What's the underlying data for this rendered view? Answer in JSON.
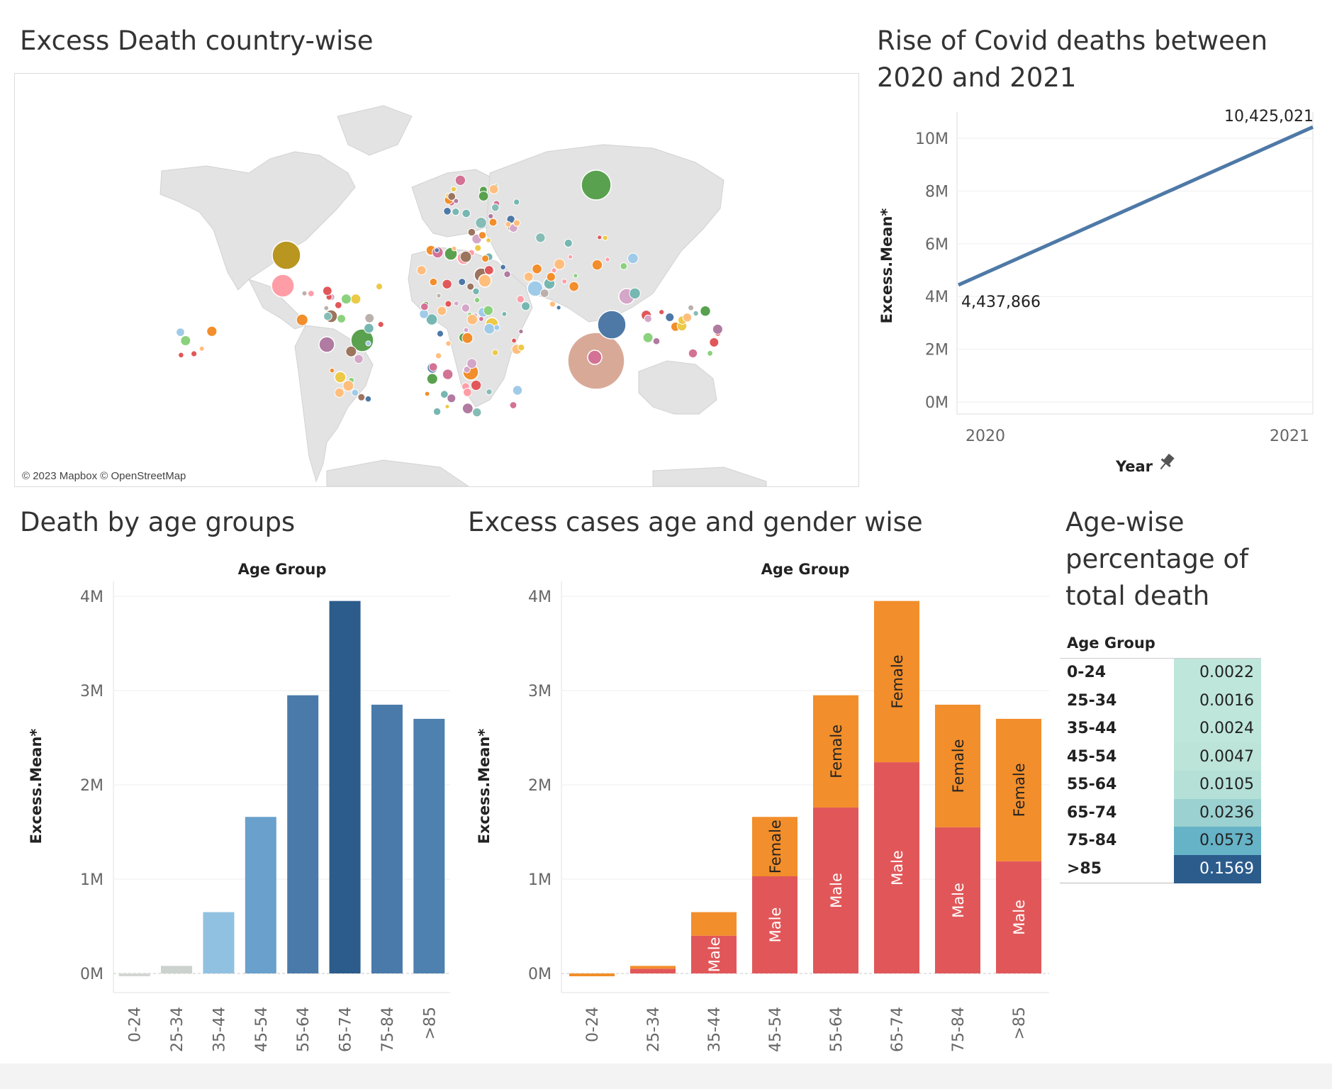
{
  "colors": {
    "map_land": "#e2e2e2",
    "line": "#4e79a7",
    "male": "#e15759",
    "female": "#f28e2b",
    "grid": "#eeeeee"
  },
  "map": {
    "title": "Excess Death country-wise",
    "credit": "© 2023 Mapbox © OpenStreetMap"
  },
  "line_chart": {
    "title": "Rise of Covid deaths between 2020 and 2021",
    "title_line1": "Rise of Covid deaths between",
    "title_line2": "2020 and 2021",
    "ylabel": "Excess.Mean*",
    "xlabel": "Year",
    "yticks": [
      "0M",
      "2M",
      "4M",
      "6M",
      "8M",
      "10M"
    ],
    "start_label": "4,437,866",
    "end_label": "10,425,021"
  },
  "age_chart": {
    "title": "Death by age groups",
    "header": "Age Group",
    "ylabel": "Excess.Mean*",
    "yticks": [
      "0M",
      "1M",
      "2M",
      "3M",
      "4M"
    ]
  },
  "gender_chart": {
    "title": "Excess cases age and gender wise",
    "header": "Age Group",
    "ylabel": "Excess.Mean*",
    "yticks": [
      "0M",
      "1M",
      "2M",
      "3M",
      "4M"
    ],
    "male_label": "Male",
    "female_label": "Female"
  },
  "table": {
    "title_line1": "Age-wise",
    "title_line2": "percentage of",
    "title_line3": "total death",
    "header": "Age Group",
    "rows": [
      {
        "age": "0-24",
        "value": "0.0022",
        "bg": "#bfe6db",
        "fg": "#222"
      },
      {
        "age": "25-34",
        "value": "0.0016",
        "bg": "#bfe6db",
        "fg": "#222"
      },
      {
        "age": "35-44",
        "value": "0.0024",
        "bg": "#bfe6db",
        "fg": "#222"
      },
      {
        "age": "45-54",
        "value": "0.0047",
        "bg": "#bce4d9",
        "fg": "#222"
      },
      {
        "age": "55-64",
        "value": "0.0105",
        "bg": "#b4e0d7",
        "fg": "#222"
      },
      {
        "age": "65-74",
        "value": "0.0236",
        "bg": "#9bd1d0",
        "fg": "#222"
      },
      {
        "age": "75-84",
        "value": "0.0573",
        "bg": "#66b3c7",
        "fg": "#222"
      },
      {
        "age": ">85",
        "value": "0.1569",
        "bg": "#2c5c8c",
        "fg": "#ffffff"
      }
    ]
  },
  "chart_data": [
    {
      "type": "line",
      "title": "Rise of Covid deaths between 2020 and 2021",
      "xlabel": "Year",
      "ylabel": "Excess.Mean*",
      "x": [
        "2020",
        "2021"
      ],
      "values": [
        4437866,
        10425021
      ],
      "ylim": [
        0,
        10500000
      ],
      "grid": true
    },
    {
      "type": "bar",
      "title": "Death by age groups",
      "xlabel": "Age Group",
      "ylabel": "Excess.Mean*",
      "categories": [
        "0-24",
        "25-34",
        "35-44",
        "45-54",
        "55-64",
        "65-74",
        "75-84",
        ">85"
      ],
      "values": [
        -20000,
        80000,
        650000,
        1660000,
        2950000,
        3950000,
        2850000,
        2700000
      ],
      "colors": [
        "#d3d7d2",
        "#ccd2cd",
        "#91c1e0",
        "#6aa0cc",
        "#4a7aaa",
        "#2c5c8c",
        "#4a7aaa",
        "#4e80b0"
      ],
      "ylim": [
        0,
        4000000
      ],
      "grid": true
    },
    {
      "type": "bar",
      "stacked": true,
      "title": "Excess cases age and gender wise",
      "xlabel": "Age Group",
      "ylabel": "Excess.Mean*",
      "categories": [
        "0-24",
        "25-34",
        "35-44",
        "45-54",
        "55-64",
        "65-74",
        "75-84",
        ">85"
      ],
      "series": [
        {
          "name": "Male",
          "values": [
            -10000,
            50000,
            400000,
            1030000,
            1760000,
            2240000,
            1550000,
            1190000
          ]
        },
        {
          "name": "Female",
          "values": [
            -10000,
            30000,
            250000,
            630000,
            1190000,
            1710000,
            1300000,
            1510000
          ]
        }
      ],
      "ylim": [
        0,
        4000000
      ],
      "grid": true
    }
  ]
}
